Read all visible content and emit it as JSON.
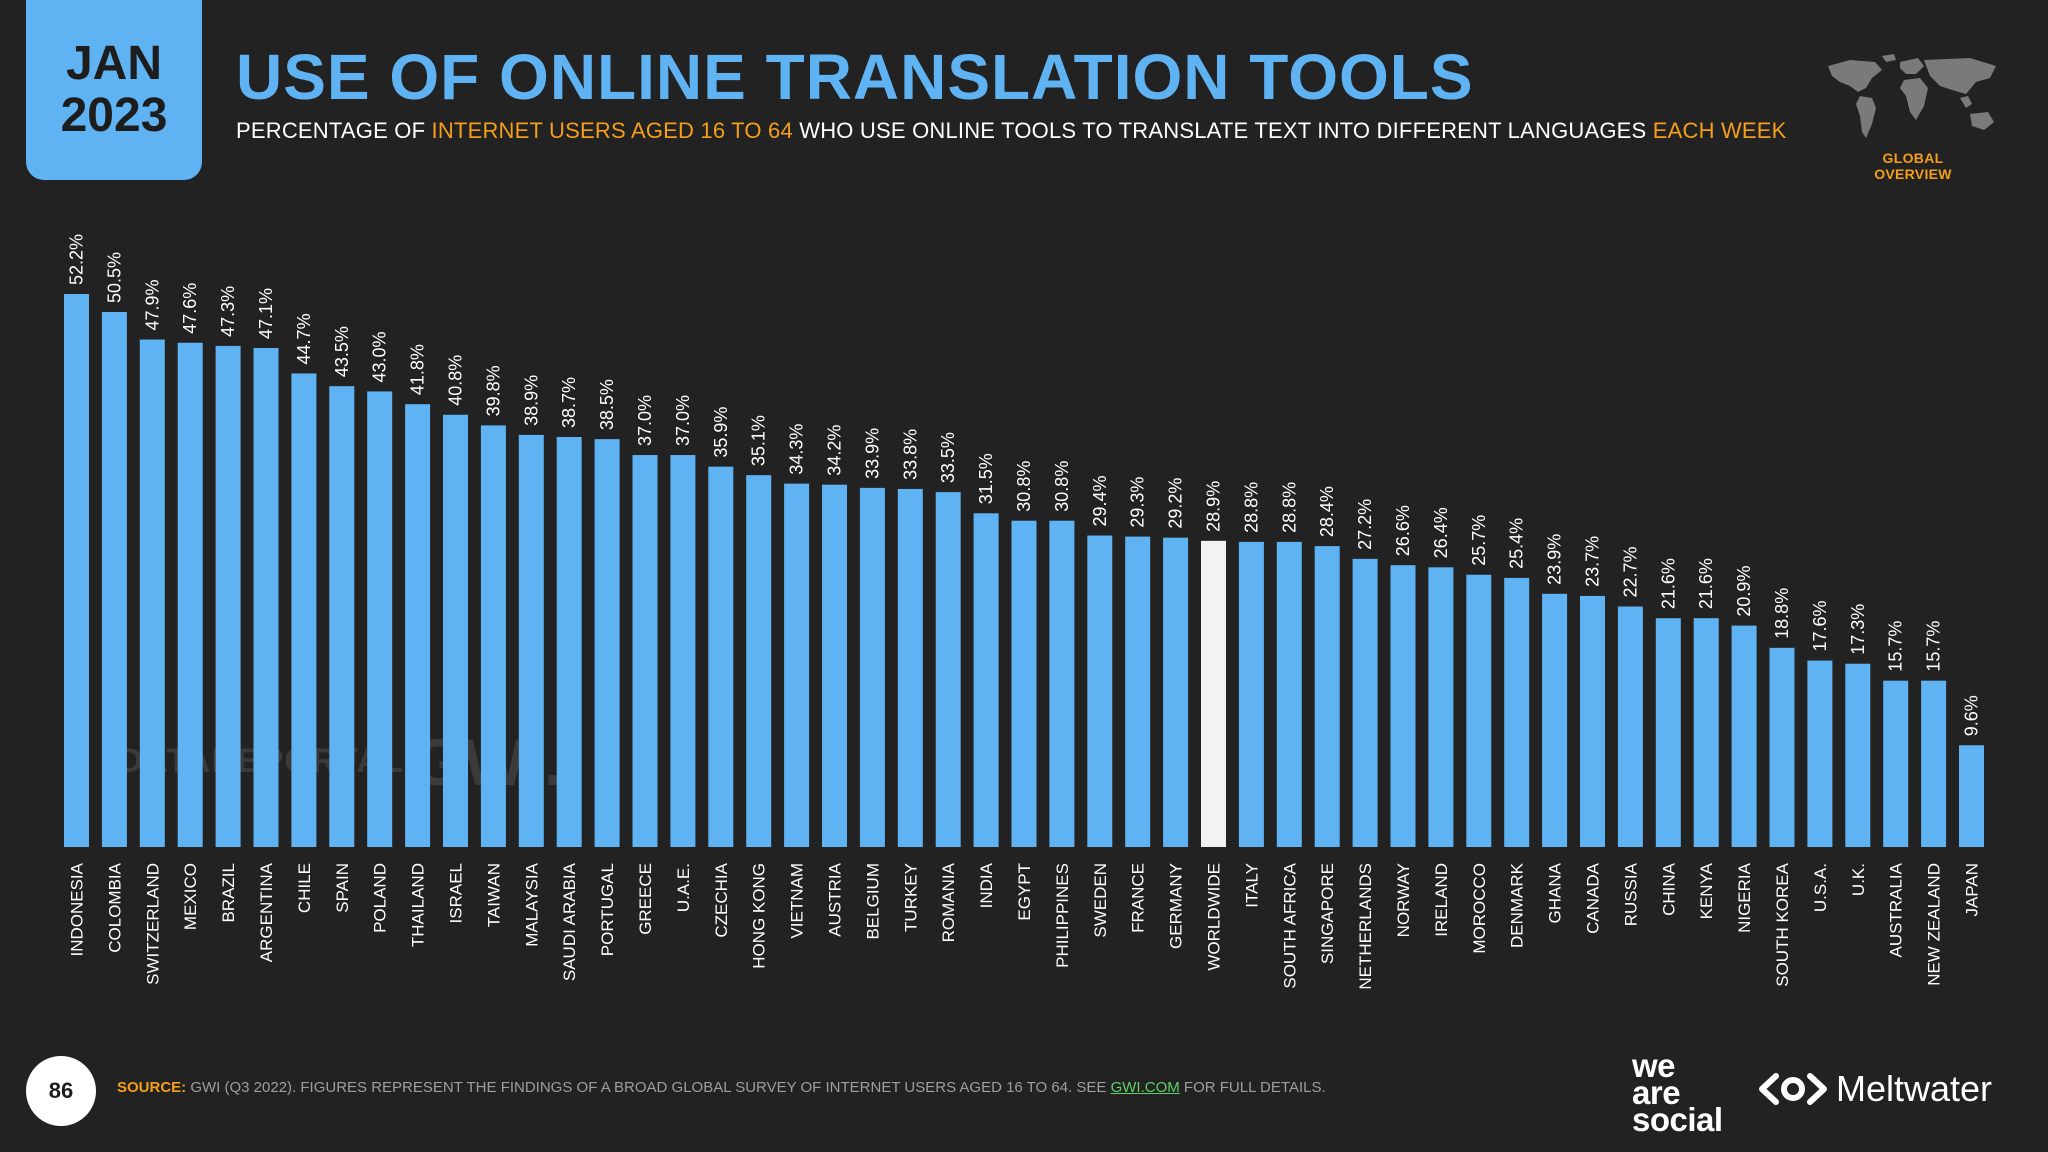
{
  "header": {
    "badge_month": "JAN",
    "badge_year": "2023",
    "title": "USE OF ONLINE TRANSLATION TOOLS",
    "subtitle_parts": {
      "p1": "PERCENTAGE OF ",
      "p2": "INTERNET USERS AGED 16 TO 64",
      "p3": " WHO USE ONLINE TOOLS TO TRANSLATE TEXT INTO DIFFERENT LANGUAGES ",
      "p4": "EACH WEEK"
    },
    "section_label": "GLOBAL OVERVIEW"
  },
  "watermarks": {
    "datareportal": "DATAREPORTAL",
    "gwi": "GWI."
  },
  "chart_data": {
    "type": "bar",
    "title": "USE OF ONLINE TRANSLATION TOOLS",
    "subtitle": "PERCENTAGE OF INTERNET USERS AGED 16 TO 64 WHO USE ONLINE TOOLS TO TRANSLATE TEXT INTO DIFFERENT LANGUAGES EACH WEEK",
    "xlabel": "",
    "ylabel": "",
    "ylim": [
      0,
      52.2
    ],
    "unit": "%",
    "highlight": "WORLDWIDE",
    "colors": {
      "bar": "#5fb3f3",
      "highlight": "#f2f2f2",
      "label": "#ffffff"
    },
    "categories": [
      "INDONESIA",
      "COLOMBIA",
      "SWITZERLAND",
      "MEXICO",
      "BRAZIL",
      "ARGENTINA",
      "CHILE",
      "SPAIN",
      "POLAND",
      "THAILAND",
      "ISRAEL",
      "TAIWAN",
      "MALAYSIA",
      "SAUDI ARABIA",
      "PORTUGAL",
      "GREECE",
      "U.A.E.",
      "CZECHIA",
      "HONG KONG",
      "VIETNAM",
      "AUSTRIA",
      "BELGIUM",
      "TURKEY",
      "ROMANIA",
      "INDIA",
      "EGYPT",
      "PHILIPPINES",
      "SWEDEN",
      "FRANCE",
      "GERMANY",
      "WORLDWIDE",
      "ITALY",
      "SOUTH AFRICA",
      "SINGAPORE",
      "NETHERLANDS",
      "NORWAY",
      "IRELAND",
      "MOROCCO",
      "DENMARK",
      "GHANA",
      "CANADA",
      "RUSSIA",
      "CHINA",
      "KENYA",
      "NIGERIA",
      "SOUTH KOREA",
      "U.S.A.",
      "U.K.",
      "AUSTRALIA",
      "NEW ZEALAND",
      "JAPAN"
    ],
    "values": [
      52.2,
      50.5,
      47.9,
      47.6,
      47.3,
      47.1,
      44.7,
      43.5,
      43.0,
      41.8,
      40.8,
      39.8,
      38.9,
      38.7,
      38.5,
      37.0,
      37.0,
      35.9,
      35.1,
      34.3,
      34.2,
      33.9,
      33.8,
      33.5,
      31.5,
      30.8,
      30.8,
      29.4,
      29.3,
      29.2,
      28.9,
      28.8,
      28.8,
      28.4,
      27.2,
      26.6,
      26.4,
      25.7,
      25.4,
      23.9,
      23.7,
      22.7,
      21.6,
      21.6,
      20.9,
      18.8,
      17.6,
      17.3,
      15.7,
      15.7,
      9.6
    ]
  },
  "footer": {
    "page_number": "86",
    "source_label": "SOURCE:",
    "source_text_1": " GWI (Q3 2022). FIGURES REPRESENT THE FINDINGS OF A BROAD GLOBAL SURVEY OF INTERNET USERS AGED 16 TO 64. SEE ",
    "source_link": "GWI.COM",
    "source_text_2": " FOR FULL DETAILS.",
    "logo_we": "we",
    "logo_are": "are",
    "logo_social": "social",
    "logo_meltwater": "Meltwater"
  }
}
